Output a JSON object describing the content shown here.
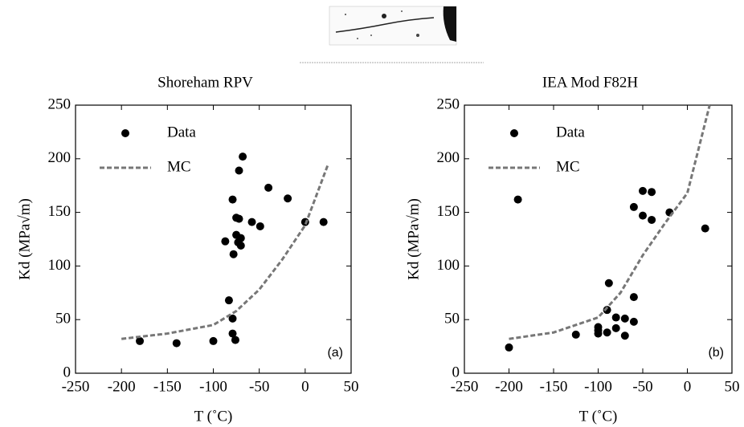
{
  "chart_data": [
    {
      "type": "scatter",
      "title": "Shoreham  RPV",
      "annotation": "(a)",
      "x_label": "T (˚C)",
      "y_label": "Kd (MPa√m)",
      "xlim": [
        -250,
        50
      ],
      "xticks": [
        -250,
        -200,
        -150,
        -100,
        -50,
        0,
        50
      ],
      "ylim": [
        0,
        250
      ],
      "yticks": [
        0,
        50,
        100,
        150,
        200,
        250
      ],
      "legend": "upper left",
      "series": [
        {
          "name": "Data",
          "type": "scatter",
          "color": "#000000",
          "x": [
            -180,
            -140,
            -100,
            -87,
            -83,
            -79,
            -79,
            -76,
            -79,
            -78,
            -75,
            -75,
            -72,
            -73,
            -72,
            -68,
            -70,
            -70,
            -40,
            -58,
            -49,
            -19,
            0,
            20
          ],
          "values": [
            30,
            28,
            30,
            123,
            68,
            51,
            37,
            31,
            162,
            111,
            145,
            129,
            144,
            122,
            189,
            202,
            126,
            119,
            173,
            141,
            137,
            163,
            141,
            141
          ]
        },
        {
          "name": "MC",
          "type": "line",
          "color": "#777777",
          "x": [
            -200,
            -150,
            -100,
            -75,
            -50,
            -25,
            0,
            25
          ],
          "values": [
            32,
            37,
            45,
            58,
            78,
            106,
            138,
            195
          ]
        }
      ]
    },
    {
      "type": "scatter",
      "title": "IEA Mod F82H",
      "annotation": "(b)",
      "x_label": "T (˚C)",
      "y_label": "Kd (MPa√m)",
      "xlim": [
        -250,
        50
      ],
      "xticks": [
        -250,
        -200,
        -150,
        -100,
        -50,
        0,
        50
      ],
      "ylim": [
        0,
        250
      ],
      "yticks": [
        0,
        50,
        100,
        150,
        200,
        250
      ],
      "legend": "upper left",
      "series": [
        {
          "name": "Data",
          "type": "scatter",
          "color": "#000000",
          "x": [
            -200,
            -190,
            -125,
            -100,
            -100,
            -100,
            -90,
            -90,
            -88,
            -80,
            -80,
            -70,
            -70,
            -60,
            -60,
            -60,
            -50,
            -50,
            -40,
            -40,
            -20,
            20
          ],
          "values": [
            24,
            162,
            36,
            37,
            40,
            43,
            38,
            59,
            84,
            52,
            42,
            35,
            51,
            48,
            71,
            155,
            147,
            170,
            169,
            143,
            150,
            135
          ]
        },
        {
          "name": "MC",
          "type": "line",
          "color": "#777777",
          "x": [
            -200,
            -150,
            -100,
            -75,
            -50,
            -25,
            0,
            25
          ],
          "values": [
            32,
            38,
            52,
            75,
            110,
            140,
            168,
            250
          ]
        }
      ]
    }
  ]
}
